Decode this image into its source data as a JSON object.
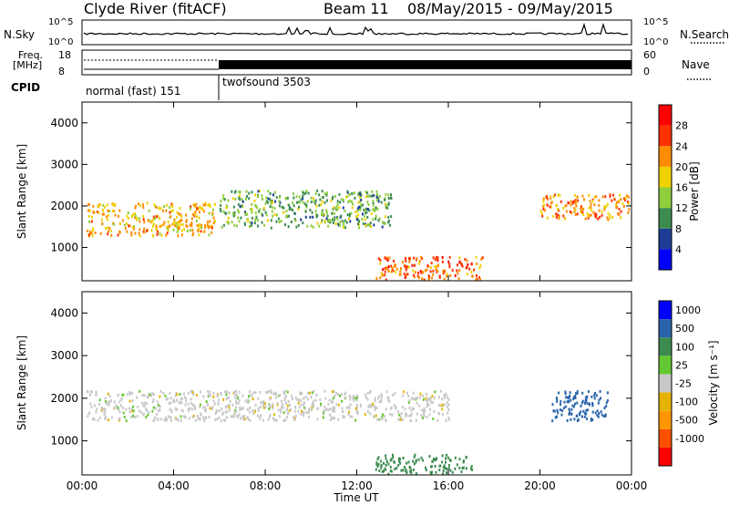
{
  "header": {
    "station": "Clyde River (fitACF)",
    "beam": "Beam 11",
    "date_range": "08/May/2015 - 09/May/2015"
  },
  "noise_panel": {
    "left_label": "N.Sky",
    "left_ticks": [
      "10^5",
      "10^0"
    ],
    "right_label": "N.Search",
    "right_ticks": [
      "10^5",
      "10^0"
    ]
  },
  "freq_panel": {
    "left_label_line1": "Freq.",
    "left_label_line2": "[MHz]",
    "left_ticks": [
      "18",
      "8"
    ],
    "right_label": "Nave",
    "right_ticks": [
      "60",
      "0"
    ],
    "cpid_label": "CPID",
    "cpid_modes": [
      "normal (fast) 151",
      "twofsound 3503"
    ]
  },
  "chart_data": [
    {
      "type": "heatmap",
      "title": "",
      "xlabel": "",
      "ylabel": "Slant Range [km]",
      "x_domain_hours": [
        0,
        24
      ],
      "ylim": [
        200,
        4500
      ],
      "yticks": [
        "4000",
        "3000",
        "2000",
        "1000"
      ],
      "colorbar": {
        "label": "Power [dB]",
        "ticks": [
          "28",
          "24",
          "20",
          "16",
          "12",
          "8",
          "4"
        ],
        "colors": [
          "#0000ff",
          "#1e3c96",
          "#3c8c50",
          "#8fce3c",
          "#f0d200",
          "#ff8c00",
          "#ff3200",
          "#ff0000"
        ]
      },
      "echo_regions": [
        {
          "x0": 0.2,
          "x1": 5.8,
          "y0": 1300,
          "y1": 2100,
          "level": 20
        },
        {
          "x0": 6.0,
          "x1": 13.5,
          "y0": 1500,
          "y1": 2400,
          "level": 12
        },
        {
          "x0": 12.8,
          "x1": 17.5,
          "y0": 250,
          "y1": 800,
          "level": 24
        },
        {
          "x0": 20.0,
          "x1": 23.9,
          "y0": 1700,
          "y1": 2300,
          "level": 22
        }
      ]
    },
    {
      "type": "heatmap",
      "title": "",
      "xlabel": "Time UT",
      "ylabel": "Slant Range [km]",
      "x_domain_hours": [
        0,
        24
      ],
      "ylim": [
        200,
        4500
      ],
      "yticks": [
        "4000",
        "3000",
        "2000",
        "1000"
      ],
      "xticks": [
        "00:00",
        "04:00",
        "08:00",
        "12:00",
        "16:00",
        "20:00",
        "00:00"
      ],
      "colorbar": {
        "label": "Velocity [m s⁻¹]",
        "ticks": [
          "1000",
          "500",
          "100",
          "25",
          "-25",
          "-100",
          "-500",
          "-1000"
        ],
        "colors": [
          "#ff0000",
          "#ff5000",
          "#ff9600",
          "#e6b400",
          "#c8c8c8",
          "#64c832",
          "#3c8c50",
          "#2864aa",
          "#0000ff"
        ]
      },
      "echo_regions": [
        {
          "x0": 0.2,
          "x1": 16.0,
          "y0": 1500,
          "y1": 2200,
          "level": 0
        },
        {
          "x0": 12.8,
          "x1": 17.0,
          "y0": 250,
          "y1": 700,
          "level": 150
        },
        {
          "x0": 20.5,
          "x1": 23.0,
          "y0": 1500,
          "y1": 2200,
          "level": 900
        }
      ]
    }
  ]
}
